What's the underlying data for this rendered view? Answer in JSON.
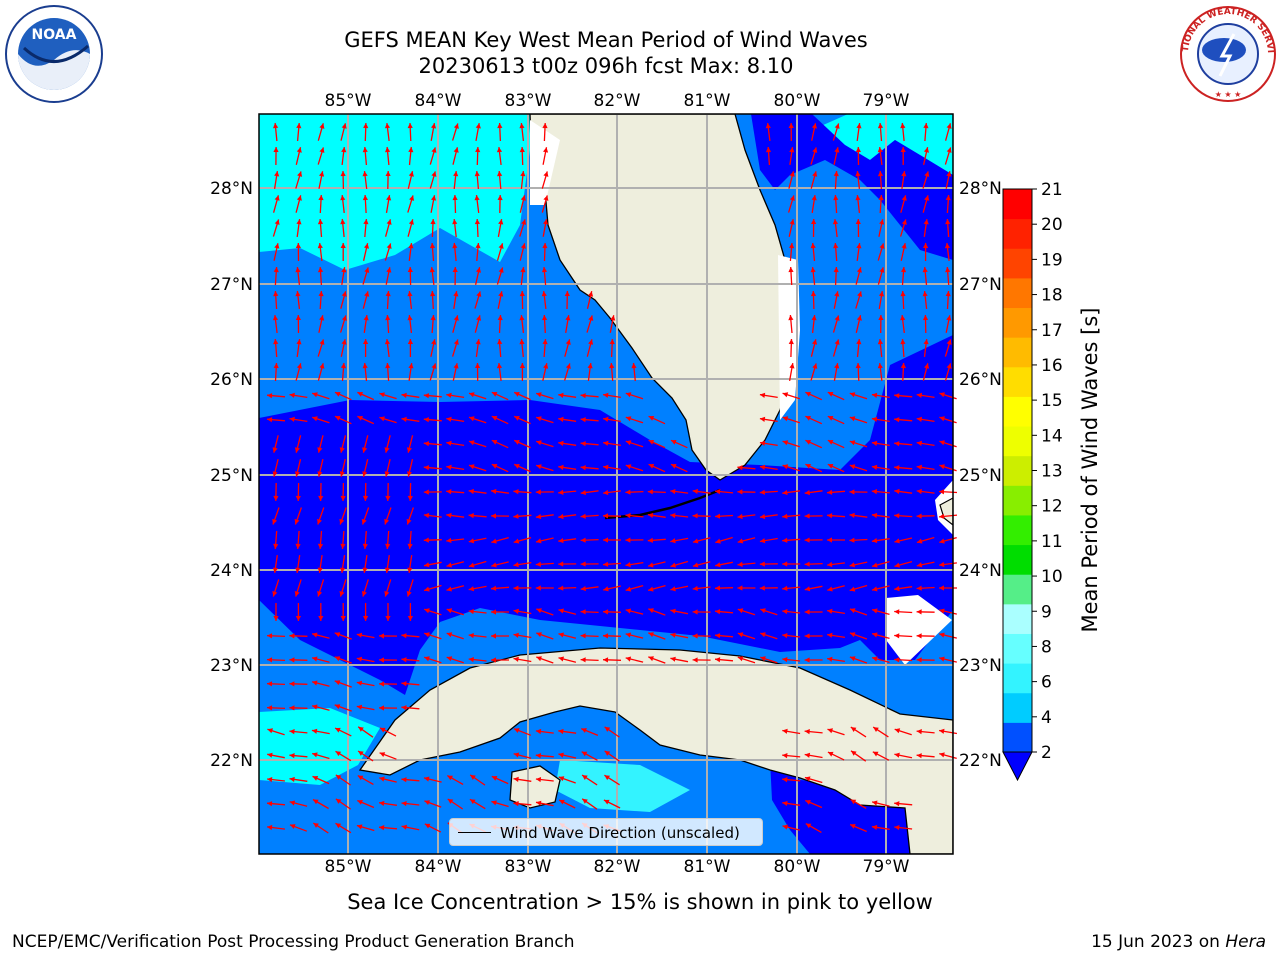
{
  "title_line1": "GEFS MEAN Key West Mean Period of Wind Waves",
  "title_line2": "20230613 t00z 096h fcst   Max: 8.10",
  "longitude_labels": [
    "85°W",
    "84°W",
    "83°W",
    "82°W",
    "81°W",
    "80°W",
    "79°W"
  ],
  "latitude_labels": [
    "28°N",
    "27°N",
    "26°N",
    "25°N",
    "24°N",
    "23°N",
    "22°N"
  ],
  "colorbar": {
    "title": "Mean Period of Wind Waves [s]",
    "ticks": [
      "2",
      "4",
      "6",
      "8",
      "9",
      "10",
      "11",
      "12",
      "13",
      "14",
      "15",
      "16",
      "17",
      "18",
      "19",
      "20",
      "21"
    ],
    "colors": [
      "#0050ff",
      "#00ccff",
      "#33f3ff",
      "#66ffff",
      "#aaffff",
      "#55ee88",
      "#00dd00",
      "#33ee00",
      "#88ee00",
      "#ccee00",
      "#eeff00",
      "#ffff00",
      "#ffdd00",
      "#ffbb00",
      "#ff9900",
      "#ff7700",
      "#ff4400",
      "#ff2200",
      "#ff0000"
    ],
    "under_color": "#0000ff"
  },
  "legend": {
    "label": "Wind Wave Direction (unscaled)"
  },
  "note": "Sea Ice Concentration > 15% is shown in pink to yellow",
  "footer_left": "NCEP/EMC/Verification Post Processing Product Generation Branch",
  "footer_right_date": "15 Jun 2023 on",
  "footer_right_host": "Hera",
  "logos": {
    "left": "NOAA",
    "right": "NATIONAL WEATHER SERVICE"
  },
  "colors": {
    "land": "#eeeedd",
    "grid": "#b0b0b0",
    "arrow": "#ff0000",
    "wave_2_4": "#0080ff",
    "wave_under_2": "#0000ff",
    "wave_4_6": "#00ffff"
  }
}
